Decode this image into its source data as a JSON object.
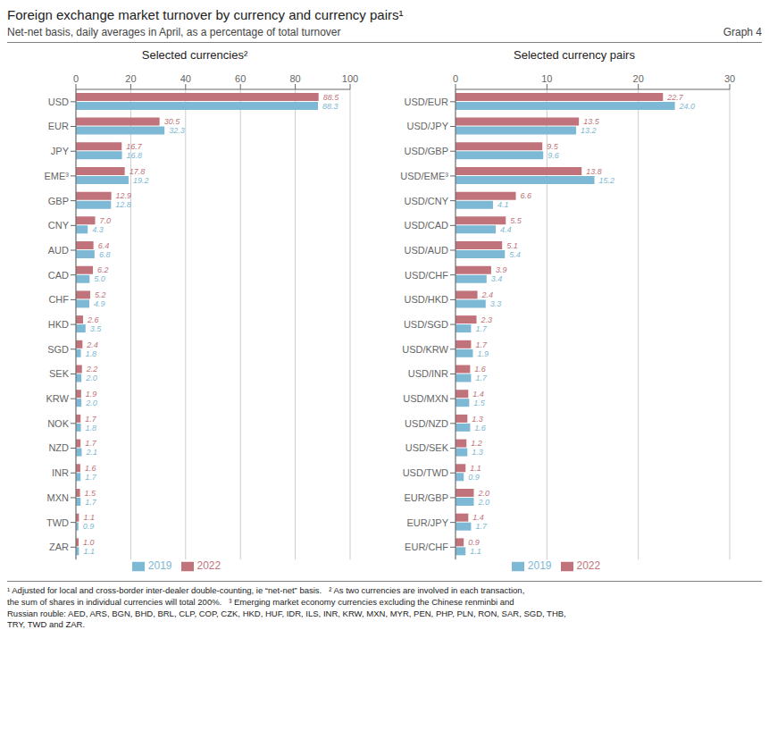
{
  "title": "Foreign exchange market turnover by currency and currency pairs¹",
  "subtitle": "Net-net basis, daily averages in April, as a percentage of total turnover",
  "annotations": [
    "Graph 4",
    "¹ Adjusted for local and cross-border inter-dealer double-counting, ie “net-net” basis.   ² As two currencies are involved in each transaction,\nthe sum of shares in individual currencies will total 200%.   ³ Emerging market economy currencies excluding the Chinese renminbi and\nRussian rouble: AED, ARS, BGN, BHD, BRL, CLP, COP, CZK, HKD, HUF, IDR, ILS, INR, KRW, MXN, MYR, PEN, PHP, PLN, RON, SAR, SGD, THB,\nTRY, TWD and ZAR."
  ],
  "chart_data": [
    {
      "type": "bar",
      "orientation": "horizontal",
      "title": "Selected currencies²",
      "categories": [
        "USD",
        "EUR",
        "JPY",
        "EME³",
        "GBP",
        "CNY",
        "AUD",
        "CAD",
        "CHF",
        "HKD",
        "SGD",
        "SEK",
        "KRW",
        "NOK",
        "NZD",
        "INR",
        "MXN",
        "TWD",
        "ZAR"
      ],
      "series": [
        {
          "name": "2022",
          "color": "#c0737a",
          "values": [
            88.5,
            30.5,
            16.7,
            17.8,
            12.9,
            7.0,
            6.4,
            6.2,
            5.2,
            2.6,
            2.4,
            2.2,
            1.9,
            1.7,
            1.7,
            1.6,
            1.5,
            1.1,
            1.0
          ],
          "value_labels": [
            "88.5",
            "30.5",
            "16.7",
            "17.8",
            "12.9",
            "7.0",
            "6.4",
            "6.2",
            "5.2",
            "2.6",
            "2.4",
            "2.2",
            "1.9",
            "1.7",
            "1.7",
            "1.6",
            "1.5",
            "1.1",
            "1.0"
          ]
        },
        {
          "name": "2019",
          "color": "#7db8d4",
          "values": [
            88.3,
            32.3,
            16.8,
            19.2,
            12.8,
            4.3,
            6.8,
            5.0,
            4.9,
            3.5,
            1.8,
            2.0,
            2.0,
            1.8,
            2.1,
            1.7,
            1.7,
            0.9,
            1.1
          ],
          "value_labels": [
            "88.3",
            "32.3",
            "16.8",
            "19.2",
            "12.8",
            "4.3",
            "6.8",
            "5.0",
            "4.9",
            "3.5",
            "1.8",
            "2.0",
            "2.0",
            "1.8",
            "2.1",
            "1.7",
            "1.7",
            "0.9",
            "1.1"
          ]
        }
      ],
      "xlim": [
        0,
        100
      ],
      "xticks": [
        0,
        20,
        40,
        60,
        80,
        100
      ],
      "data_labels": true,
      "grid": true,
      "legend": "bottom"
    },
    {
      "type": "bar",
      "orientation": "horizontal",
      "title": "Selected currency pairs",
      "categories": [
        "USD/EUR",
        "USD/JPY",
        "USD/GBP",
        "USD/EME³",
        "USD/CNY",
        "USD/CAD",
        "USD/AUD",
        "USD/CHF",
        "USD/HKD",
        "USD/SGD",
        "USD/KRW",
        "USD/INR",
        "USD/MXN",
        "USD/NZD",
        "USD/SEK",
        "USD/TWD",
        "EUR/GBP",
        "EUR/JPY",
        "EUR/CHF"
      ],
      "series": [
        {
          "name": "2022",
          "color": "#c0737a",
          "values": [
            22.7,
            13.5,
            9.5,
            13.8,
            6.6,
            5.5,
            5.1,
            3.9,
            2.4,
            2.3,
            1.7,
            1.6,
            1.4,
            1.3,
            1.2,
            1.1,
            2.0,
            1.4,
            0.9
          ],
          "value_labels": [
            "22.7",
            "13.5",
            "9.5",
            "13.8",
            "6.6",
            "5.5",
            "5.1",
            "3.9",
            "2.4",
            "2.3",
            "1.7",
            "1.6",
            "1.4",
            "1.3",
            "1.2",
            "1.1",
            "2.0",
            "1.4",
            "0.9"
          ]
        },
        {
          "name": "2019",
          "color": "#7db8d4",
          "values": [
            24.0,
            13.2,
            9.6,
            15.2,
            4.1,
            4.4,
            5.4,
            3.4,
            3.3,
            1.7,
            1.9,
            1.7,
            1.5,
            1.6,
            1.3,
            0.9,
            2.0,
            1.7,
            1.1
          ],
          "value_labels": [
            "24.0",
            "13.2",
            "9.6",
            "15.2",
            "4.1",
            "4.4",
            "5.4",
            "3.4",
            "3.3",
            "1.7",
            "1.9",
            "1.7",
            "1.5",
            "1.6",
            "1.3",
            "0.9",
            "2.0",
            "1.7",
            "1.1"
          ]
        }
      ],
      "xlim": [
        0,
        30
      ],
      "xticks": [
        0,
        10,
        20,
        30
      ],
      "data_labels": true,
      "grid": true,
      "legend": "bottom"
    }
  ]
}
